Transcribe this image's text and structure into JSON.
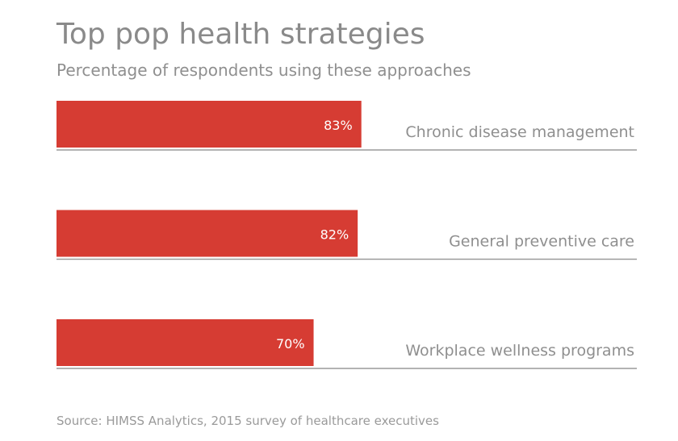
{
  "title": "Top pop health strategies",
  "subtitle": "Percentage of respondents using these approaches",
  "source": "Source: HIMSS Analytics, 2015 survey of healthcare executives",
  "colors": {
    "bar": "#d63c33",
    "bar_label": "#ffffff",
    "category_label": "#8f8f8f",
    "baseline": "#9a9a9a"
  },
  "chart_data": {
    "type": "bar",
    "orientation": "horizontal",
    "categories": [
      "Chronic disease management",
      "General preventive care",
      "Workplace wellness programs"
    ],
    "values": [
      83,
      82,
      70
    ],
    "value_labels": [
      "83%",
      "82%",
      "70%"
    ],
    "title": "Top pop health strategies",
    "subtitle": "Percentage of respondents using these approaches",
    "xlim": [
      0,
      158
    ],
    "grid": false,
    "legend": "none"
  }
}
